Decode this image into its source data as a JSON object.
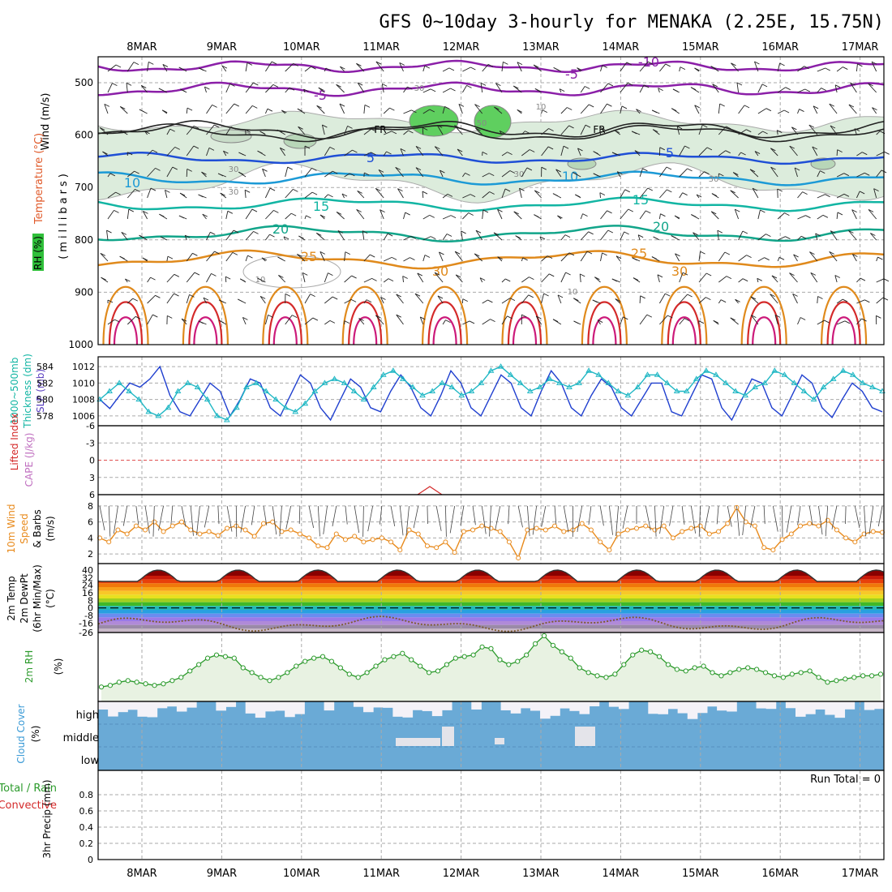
{
  "title": "GFS 0~10day 3-hourly for MENAKA (2.25E, 15.75N)",
  "dates": [
    "8MAR",
    "9MAR",
    "10MAR",
    "11MAR",
    "12MAR",
    "13MAR",
    "14MAR",
    "15MAR",
    "16MAR",
    "17MAR"
  ],
  "colors": {
    "frame": "#000000",
    "grid": "#aaaaaa",
    "purple": "#8b1fa8",
    "blue": "#1f4fd6",
    "lightblue": "#1c9ad6",
    "teal": "#12b5a3",
    "orange": "#e08a1c",
    "red": "#d42a2a",
    "magenta": "#cc1a7a",
    "slp": "#1f3fcf",
    "thickness": "#1fb7c4",
    "wind10": "#e88a1c",
    "rh2m": "#2b9a2b",
    "cloud": "#6aaad6",
    "cloudclear": "#f4f2f8"
  },
  "panels": {
    "upper": {
      "ylabel_wind": "Wind (m/s)",
      "ylabel_temp": "Temperature (°C)",
      "ylabel_rh": "RH (%)",
      "ylabel_units": "(millibars)",
      "ticks": [
        "500",
        "600",
        "700",
        "800",
        "900",
        "1000"
      ],
      "contour_labels": [
        "-10",
        "-5",
        "-5",
        "5",
        "5",
        "10",
        "10",
        "15",
        "15",
        "20",
        "20",
        "25",
        "25",
        "30",
        "30",
        "FR",
        "FR",
        "30",
        "30",
        "30",
        "30",
        "30",
        "50",
        "10",
        "10",
        "10"
      ]
    },
    "slp": {
      "ylabel_a": "1000~500mb",
      "ylabel_b": "Thickness (dm)",
      "ylabel_c": "SLP (mb)",
      "left_ticks": [
        "584",
        "582",
        "580",
        "578"
      ],
      "right_ticks": [
        "1012",
        "1010",
        "1008",
        "1006"
      ]
    },
    "cape": {
      "ylabel_a": "Lifted Index",
      "ylabel_b": "CAPE (J/kg)",
      "ticks": [
        "-6",
        "-3",
        "0",
        "3",
        "6"
      ]
    },
    "wind10": {
      "ylabel_a": "10m Wind",
      "ylabel_b": "Speed",
      "ylabel_c": "& Barbs",
      "ylabel_d": "(m/s)",
      "ticks": [
        "8",
        "6",
        "4",
        "2"
      ]
    },
    "temp2m": {
      "ylabel_a": "2m Temp",
      "ylabel_b": "2m DewPt",
      "ylabel_c": "(6hr Min/Max)",
      "ylabel_d": "(°C)",
      "ticks": [
        "40",
        "32",
        "24",
        "16",
        "8",
        "0",
        "-8",
        "-16",
        "-26"
      ]
    },
    "rh2m": {
      "ylabel_a": "2m RH",
      "ylabel_b": "(%)"
    },
    "cloud": {
      "ylabel_a": "Cloud Cover",
      "ylabel_b": "(%)",
      "levels": [
        "high",
        "middle",
        "low"
      ]
    },
    "precip": {
      "ylabel_a": "Total / Rain",
      "ylabel_b": "Convective",
      "ylabel_c": "3hr Precip (mm)",
      "ticks": [
        "0.8",
        "0.6",
        "0.4",
        "0.2",
        "0"
      ],
      "run_total": "Run Total = 0"
    }
  },
  "chart_data": [
    {
      "type": "line",
      "title": "",
      "series": [
        {
          "name": "SLP (mb)",
          "values": [
            1008.0,
            1006.9,
            1008.5,
            1010.0,
            1009.5,
            1010.5,
            1012.0,
            1008.5,
            1006.5,
            1006.0,
            1008.0,
            1010.0,
            1009.0,
            1006.0,
            1008.0,
            1010.5,
            1010.0,
            1007.0,
            1006.0,
            1008.5,
            1011.0,
            1010.0,
            1007.0,
            1005.5,
            1008.0,
            1010.5,
            1009.5,
            1007.0,
            1006.5,
            1009.0,
            1011.0,
            1009.5,
            1007.0,
            1006.0,
            1008.5,
            1011.5,
            1010.0,
            1007.0,
            1006.0,
            1008.5,
            1011.0,
            1010.0,
            1007.0,
            1006.0,
            1009.0,
            1011.5,
            1010.0,
            1007.0,
            1006.0,
            1008.5,
            1010.5,
            1009.5,
            1007.0,
            1006.0,
            1008.0,
            1010.0,
            1010.0,
            1006.5,
            1006.0,
            1008.5,
            1011.0,
            1010.5,
            1007.0,
            1005.5,
            1008.0,
            1010.5,
            1010.0,
            1007.0,
            1006.0,
            1008.5,
            1011.0,
            1010.0,
            1007.0,
            1005.8,
            1008.0,
            1010.0,
            1009.0,
            1007.0,
            1006.5
          ]
        },
        {
          "name": "1000~500mb Thickness (dm)",
          "values": [
            580.0,
            581.0,
            582.0,
            581.0,
            580.0,
            578.5,
            578.0,
            579.0,
            581.0,
            582.0,
            581.5,
            580.0,
            578.0,
            577.5,
            579.0,
            581.5,
            582.0,
            581.0,
            580.0,
            579.0,
            578.5,
            579.5,
            581.0,
            582.0,
            582.5,
            582.0,
            581.0,
            580.0,
            581.5,
            583.0,
            583.5,
            582.5,
            581.5,
            580.5,
            581.0,
            582.0,
            581.5,
            580.5,
            581.0,
            582.0,
            583.5,
            584.0,
            583.0,
            582.0,
            581.0,
            581.5,
            582.5,
            582.0,
            581.5,
            582.0,
            583.5,
            583.0,
            582.0,
            581.0,
            580.5,
            581.5,
            583.0,
            583.0,
            582.0,
            581.0,
            581.0,
            582.5,
            583.5,
            583.0,
            582.0,
            581.0,
            580.5,
            581.5,
            582.0,
            583.5,
            583.0,
            582.0,
            581.0,
            580.0,
            581.5,
            582.5,
            583.5,
            583.0,
            582.0,
            581.5,
            581.0
          ]
        }
      ],
      "ylim": [
        1005,
        1013
      ],
      "ylim_right": [
        577,
        585
      ]
    },
    {
      "type": "line",
      "title": "",
      "series": [
        {
          "name": "10m Wind Speed",
          "values": [
            4.0,
            3.5,
            5.0,
            4.5,
            5.5,
            5.0,
            6.0,
            4.8,
            5.5,
            6.0,
            5.0,
            4.5,
            4.8,
            4.3,
            5.2,
            5.5,
            5.0,
            4.2,
            5.8,
            6.0,
            4.8,
            5.0,
            4.5,
            4.0,
            3.0,
            2.8,
            4.5,
            3.8,
            4.2,
            3.5,
            3.8,
            4.0,
            3.5,
            2.5,
            5.0,
            4.5,
            3.0,
            2.8,
            3.5,
            2.2,
            4.8,
            5.0,
            5.5,
            5.2,
            4.8,
            3.5,
            1.5,
            5.0,
            5.2,
            5.0,
            5.5,
            4.8,
            5.0,
            5.8,
            5.0,
            3.5,
            2.5,
            4.5,
            5.0,
            5.2,
            5.5,
            5.0,
            5.5,
            4.0,
            4.8,
            5.2,
            5.5,
            4.5,
            4.8,
            5.8,
            7.8,
            6.0,
            5.5,
            2.8,
            2.5,
            3.8,
            4.5,
            5.5,
            5.8,
            5.5,
            6.2,
            5.0,
            4.0,
            3.5,
            4.5,
            4.8,
            4.7
          ]
        }
      ],
      "ylim": [
        1,
        9
      ]
    },
    {
      "type": "area",
      "title": "",
      "series": [
        {
          "name": "2m RH",
          "values": [
            8,
            9,
            11,
            12,
            11,
            10,
            9,
            10,
            12,
            14,
            18,
            22,
            26,
            28,
            27,
            26,
            20,
            17,
            14,
            12,
            14,
            17,
            21,
            24,
            26,
            27,
            24,
            20,
            16,
            14,
            17,
            21,
            25,
            27,
            29,
            25,
            21,
            17,
            18,
            22,
            26,
            27,
            28,
            33,
            32,
            25,
            22,
            24,
            28,
            35,
            40,
            34,
            30,
            26,
            20,
            17,
            15,
            14,
            16,
            22,
            28,
            31,
            30,
            27,
            22,
            19,
            18,
            20,
            21,
            17,
            15,
            17,
            19,
            20,
            19,
            17,
            15,
            14,
            16,
            17,
            18,
            14,
            11,
            12,
            13,
            14,
            15,
            15,
            16
          ]
        }
      ],
      "ylim": [
        0,
        40
      ]
    },
    {
      "type": "bar",
      "title": "",
      "series": [
        {
          "name": "Run Total",
          "values": [
            0
          ]
        }
      ],
      "ylim": [
        0,
        1
      ]
    }
  ]
}
